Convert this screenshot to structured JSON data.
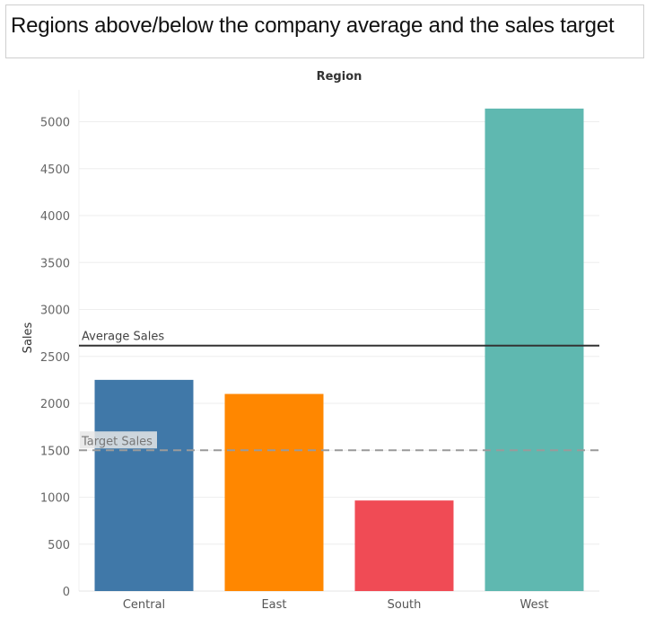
{
  "title": "Regions above/below the company average and the sales target",
  "chart_data": {
    "type": "bar",
    "title": "Regions above/below the company average and the sales target",
    "column_header": "Region",
    "xlabel": "",
    "ylabel": "Sales",
    "ylim": [
      0,
      5150
    ],
    "yticks": [
      0,
      500,
      1000,
      1500,
      2000,
      2500,
      3000,
      3500,
      4000,
      4500,
      5000
    ],
    "grid": true,
    "categories": [
      "Central",
      "East",
      "South",
      "West"
    ],
    "values": [
      2250,
      2100,
      965,
      5140
    ],
    "colors": [
      "#4078a8",
      "#ff8700",
      "#f04b55",
      "#5fb8b0"
    ],
    "reference_lines": [
      {
        "label": "Average Sales",
        "value": 2615,
        "style": "solid",
        "color": "#333333"
      },
      {
        "label": "Target Sales",
        "value": 1500,
        "style": "dashed",
        "color": "#9a9a9a"
      }
    ]
  }
}
